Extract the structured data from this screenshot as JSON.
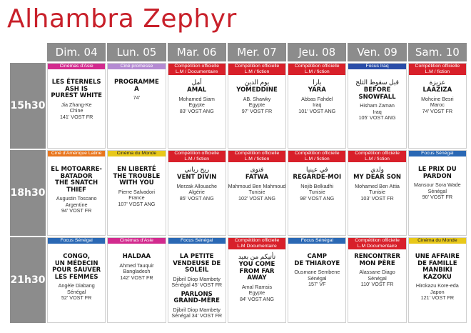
{
  "title": "Alhambra Zephyr",
  "days": [
    "Dim. 04",
    "Lun. 05",
    "Mar. 06",
    "Mer. 07",
    "Jeu. 08",
    "Ven. 09",
    "Sam. 10"
  ],
  "slots": [
    {
      "time": "15h30",
      "cells": [
        {
          "bands": [
            {
              "text": "Cinémas d'Asie",
              "color": "asie"
            }
          ],
          "films": [
            {
              "arabic": "",
              "title": "LES ÉTERNELS\nASH IS\nPUREST WHITE",
              "info": [
                "Jia Zhang-Ke",
                "Chine",
                "141' VOST FR"
              ]
            }
          ]
        },
        {
          "bands": [
            {
              "text": "Ciné promesse",
              "color": "promesse"
            }
          ],
          "films": [
            {
              "arabic": "",
              "title": "PROGRAMME\nA",
              "info": [
                "74'"
              ]
            }
          ]
        },
        {
          "bands": [
            {
              "text": "Compétition officielle",
              "color": "officielle"
            },
            {
              "text": "L.M / Documentaire",
              "color": "officielle"
            }
          ],
          "films": [
            {
              "arabic": "أمل",
              "title": "AMAL",
              "info": [
                "Mohamed Siam",
                "Egypte",
                "83' VOST ANG"
              ]
            }
          ]
        },
        {
          "bands": [
            {
              "text": "Compétition officielle",
              "color": "officielle"
            },
            {
              "text": "L.M / fiction",
              "color": "officielle"
            }
          ],
          "films": [
            {
              "arabic": "يوم الدين",
              "title": "YOMEDDINE",
              "info": [
                "AB. Shawky",
                "Egypte",
                "97' VOST FR"
              ]
            }
          ]
        },
        {
          "bands": [
            {
              "text": "Compétition officielle",
              "color": "officielle"
            },
            {
              "text": "L.M / fiction",
              "color": "officielle"
            }
          ],
          "films": [
            {
              "arabic": "يارا",
              "title": "YARA",
              "info": [
                "Abbas Fahdel",
                "Iraq",
                "101' VOST ANG"
              ]
            }
          ]
        },
        {
          "bands": [
            {
              "text": "Focus Iraq",
              "color": "iraq"
            }
          ],
          "films": [
            {
              "arabic": "قبل سقوط الثلج",
              "title": "BEFORE\nSNOWFALL",
              "info": [
                "Hisham Zaman",
                "Iraq",
                "105' VOST ANG"
              ]
            }
          ]
        },
        {
          "bands": [
            {
              "text": "Compétition officielle",
              "color": "officielle"
            },
            {
              "text": "L.M / fiction",
              "color": "officielle"
            }
          ],
          "films": [
            {
              "arabic": "عزيزة",
              "title": "LAAZIZA",
              "info": [
                "Mohcine Besri",
                "Maroc",
                "74' VOST FR"
              ]
            }
          ]
        }
      ]
    },
    {
      "time": "18h30",
      "cells": [
        {
          "bands": [
            {
              "text": "Ciné d'Amérique Latine",
              "color": "amerique"
            }
          ],
          "films": [
            {
              "arabic": "",
              "title": "EL MOTOARRE-\nBATADOR\nTHE SNATCH\nTHIEF",
              "info": [
                "Augustin Toscano",
                "Argentine",
                "94' VOST FR"
              ]
            }
          ]
        },
        {
          "bands": [
            {
              "text": "Cinéma du Monde",
              "color": "monde"
            }
          ],
          "films": [
            {
              "arabic": "",
              "title": "EN LIBERTÉ\nTHE TROUBLE\nWITH YOU",
              "info": [
                "Pierre Salvadori",
                "France",
                "107' VOST ANG"
              ]
            }
          ]
        },
        {
          "bands": [
            {
              "text": "Compétition officielle",
              "color": "officielle"
            },
            {
              "text": "L.M / fiction",
              "color": "officielle"
            }
          ],
          "films": [
            {
              "arabic": "ريح رباني",
              "title": "VENT DIVIN",
              "info": [
                "Merzak Allouache",
                "Algérie",
                "85' VOST ANG"
              ]
            }
          ]
        },
        {
          "bands": [
            {
              "text": "Compétition officielle",
              "color": "officielle"
            },
            {
              "text": "L.M / fiction",
              "color": "officielle"
            }
          ],
          "films": [
            {
              "arabic": "فتوى",
              "title": "FATWA",
              "info": [
                "Mahmoud Ben Mahmoud",
                "Tunisie",
                "102' VOST ANG"
              ]
            }
          ]
        },
        {
          "bands": [
            {
              "text": "Compétition officielle",
              "color": "officielle"
            },
            {
              "text": "L.M / fiction",
              "color": "officielle"
            }
          ],
          "films": [
            {
              "arabic": "في عينيا",
              "title": "REGARDE-MOI",
              "info": [
                "Nejib Belkadhi",
                "Tunisie",
                "98' VOST ANG"
              ]
            }
          ]
        },
        {
          "bands": [
            {
              "text": "Compétition officielle",
              "color": "officielle"
            },
            {
              "text": "L.M / fiction",
              "color": "officielle"
            }
          ],
          "films": [
            {
              "arabic": "ولدي",
              "title": "MY DEAR SON",
              "info": [
                "Mohamed Ben Attia",
                "Tunisie",
                "103' VOST FR"
              ]
            }
          ]
        },
        {
          "bands": [
            {
              "text": "Focus Sénégal",
              "color": "senegal"
            }
          ],
          "films": [
            {
              "arabic": "",
              "title": "LE PRIX DU\nPARDON",
              "info": [
                "Mansour Sora Wade",
                "Sénégal",
                "90' VOST FR"
              ]
            }
          ]
        }
      ]
    },
    {
      "time": "21h30",
      "cells": [
        {
          "bands": [
            {
              "text": "Focus Sénégal",
              "color": "senegal"
            }
          ],
          "films": [
            {
              "arabic": "",
              "title": "CONGO,\nUN MÉDECIN\nPOUR SAUVER\nLES FEMMES",
              "info": [
                "Angèle Diabang",
                "Sénégal",
                "52' VOST FR"
              ]
            }
          ]
        },
        {
          "bands": [
            {
              "text": "Cinémas d'Asie",
              "color": "asie"
            }
          ],
          "films": [
            {
              "arabic": "",
              "title": "HALDAA",
              "info": [
                "Ahmed Tauquir",
                "Bangladesh",
                "142' VOST FR"
              ]
            }
          ]
        },
        {
          "bands": [
            {
              "text": "Focus Sénégal",
              "color": "senegal"
            }
          ],
          "films": [
            {
              "arabic": "",
              "title": "LA PETITE\nVENDEUSE DE SOLEIL",
              "info": [
                "Djibril Diop Mambety",
                "Sénégal 45' VOST FR"
              ]
            },
            {
              "arabic": "",
              "title": "PARLONS\nGRAND-MÈRE",
              "info": [
                "Djibril Diop Mambety",
                "Sénégal 34' VOST FR"
              ]
            }
          ]
        },
        {
          "bands": [
            {
              "text": "Compétition officielle",
              "color": "officielle"
            },
            {
              "text": "L.M Documentaire",
              "color": "officielle"
            }
          ],
          "films": [
            {
              "arabic": "تأتيكم من بعيد",
              "title": "YOU COME\nFROM FAR AWAY",
              "info": [
                "Amal Ramsis",
                "Egypte",
                "84' VOST ANG"
              ]
            }
          ]
        },
        {
          "bands": [
            {
              "text": "Focus Sénégal",
              "color": "senegal"
            }
          ],
          "films": [
            {
              "arabic": "",
              "title": "CAMP\nDE THIAROYE",
              "info": [
                "Ousmane Sembene",
                "Sénégal",
                "157' VF"
              ]
            }
          ]
        },
        {
          "bands": [
            {
              "text": "Compétition officielle",
              "color": "officielle"
            },
            {
              "text": "L.M Documentaire",
              "color": "officielle"
            }
          ],
          "films": [
            {
              "arabic": "",
              "title": "RENCONTRER\nMON PÈRE",
              "info": [
                "Alassane Diago",
                "Sénégal",
                "110' VOST FR"
              ]
            }
          ]
        },
        {
          "bands": [
            {
              "text": "Cinéma du Monde",
              "color": "monde"
            }
          ],
          "films": [
            {
              "arabic": "",
              "title": "UNE AFFAIRE\nDE FAMILLE\nMANBIKI\nKAZOKU",
              "info": [
                "Hirokazu Kore-eda",
                "Japon",
                "121' VOST FR"
              ]
            }
          ]
        }
      ]
    }
  ]
}
